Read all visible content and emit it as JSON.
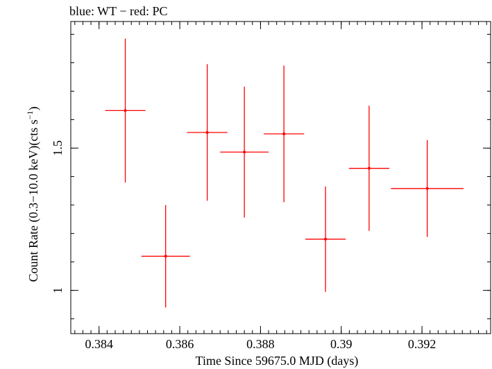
{
  "chart_data": {
    "type": "scatter",
    "title": "blue: WT − red: PC",
    "xlabel": "Time Since 59675.0 MJD (days)",
    "ylabel_main": "Count Rate (0.3−10.0 keV)(cts s",
    "ylabel_sup": "−1",
    "ylabel_close": ")",
    "xlim": [
      0.3833,
      0.3937
    ],
    "ylim": [
      0.848,
      1.945
    ],
    "x_ticks": [
      0.384,
      0.386,
      0.388,
      0.39,
      0.392
    ],
    "x_tick_labels": [
      "0.384",
      "0.386",
      "0.388",
      "0.39",
      "0.392"
    ],
    "x_minor_step": 0.0002,
    "y_ticks": [
      1,
      1.5
    ],
    "y_tick_labels": [
      "1",
      "1.5"
    ],
    "y_minor_step": 0.1,
    "series": [
      {
        "color": "#ff0000",
        "points": [
          {
            "x": 0.38465,
            "xerr": 0.0005,
            "y": 1.632,
            "yerr": 0.253
          },
          {
            "x": 0.38565,
            "xerr": 0.0006,
            "y": 1.12,
            "yerr": 0.18
          },
          {
            "x": 0.38668,
            "xerr": 0.0005,
            "y": 1.555,
            "yerr": 0.24
          },
          {
            "x": 0.3876,
            "xerr": 0.0006,
            "y": 1.486,
            "yerr": 0.23
          },
          {
            "x": 0.38858,
            "xerr": 0.0005,
            "y": 1.55,
            "yerr": 0.24
          },
          {
            "x": 0.38961,
            "xerr": 0.0005,
            "y": 1.18,
            "yerr": 0.185
          },
          {
            "x": 0.39069,
            "xerr": 0.0005,
            "y": 1.429,
            "yerr": 0.22
          },
          {
            "x": 0.39213,
            "xerr": 0.0009,
            "y": 1.358,
            "yerr": 0.17
          }
        ]
      }
    ]
  }
}
